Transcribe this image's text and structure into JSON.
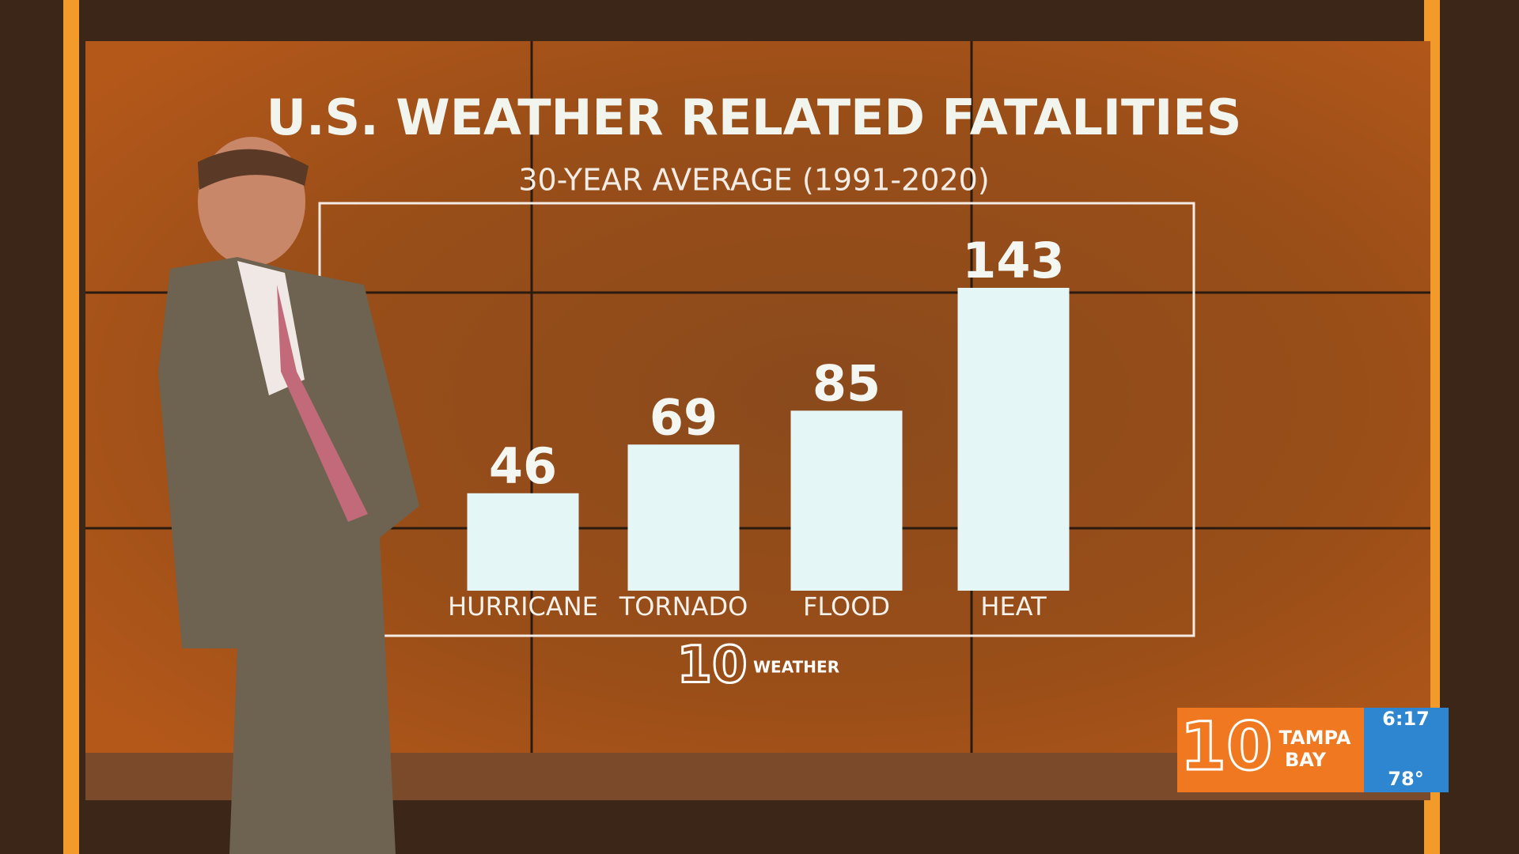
{
  "chart_data": {
    "type": "bar",
    "title": "U.S. WEATHER RELATED FATALITIES",
    "subtitle": "30-YEAR AVERAGE (1991-2020)",
    "categories": [
      "HURRICANE",
      "TORNADO",
      "FLOOD",
      "HEAT"
    ],
    "values": [
      46,
      69,
      85,
      143
    ],
    "color": "#e4f6f6"
  },
  "branding": {
    "logo_number": "10",
    "logo_text": "WEATHER"
  },
  "station_bug": {
    "number": "10",
    "name_line1": "TAMPA",
    "name_line2": "BAY",
    "time": "6:17",
    "temperature": "78°"
  }
}
